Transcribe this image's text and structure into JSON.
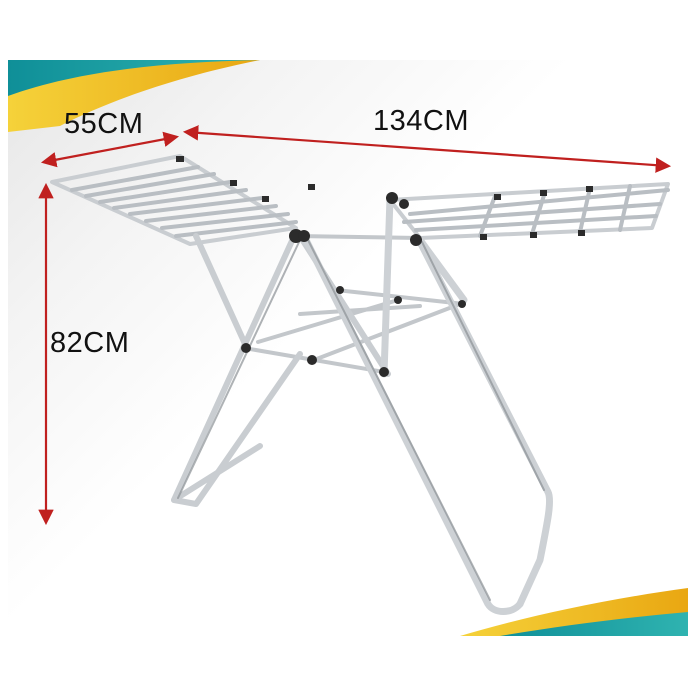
{
  "dimensions": {
    "width_label": "55CM",
    "length_label": "134CM",
    "height_label": "82CM"
  },
  "colors": {
    "teal_band": "#1a9aa0",
    "yellow_band": "#f2c21b",
    "dimension_arrow": "#c0201f",
    "frame_metal": "#c9cdd1",
    "frame_shadow": "#8c9196",
    "joint": "#2b2b2b"
  },
  "icons": [
    "drying-rack-photo",
    "dimension-arrow"
  ]
}
